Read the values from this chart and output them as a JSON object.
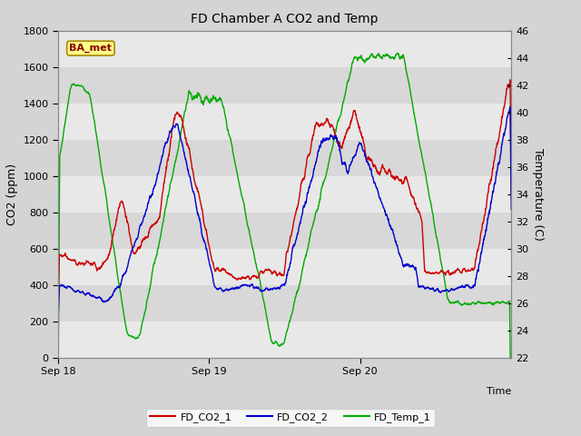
{
  "title": "FD Chamber A CO2 and Temp",
  "xlabel": "Time",
  "ylabel_left": "CO2 (ppm)",
  "ylabel_right": "Temperature (C)",
  "ylim_left": [
    0,
    1800
  ],
  "ylim_right": [
    22,
    46
  ],
  "yticks_left": [
    0,
    200,
    400,
    600,
    800,
    1000,
    1200,
    1400,
    1600,
    1800
  ],
  "yticks_right": [
    22,
    24,
    26,
    28,
    30,
    32,
    34,
    36,
    38,
    40,
    42,
    44,
    46
  ],
  "xtick_labels": [
    "Sep 18",
    "Sep 19",
    "Sep 20"
  ],
  "bg_color": "#d4d4d4",
  "band_colors": [
    "#e8e8e8",
    "#d8d8d8"
  ],
  "co2_1_color": "#cc0000",
  "co2_2_color": "#0000cc",
  "temp_color": "#00aa00",
  "ba_met_bg": "#ffff88",
  "ba_met_border": "#aa8800",
  "ba_met_text": "#880000",
  "legend_labels": [
    "FD_CO2_1",
    "FD_CO2_2",
    "FD_Temp_1"
  ]
}
